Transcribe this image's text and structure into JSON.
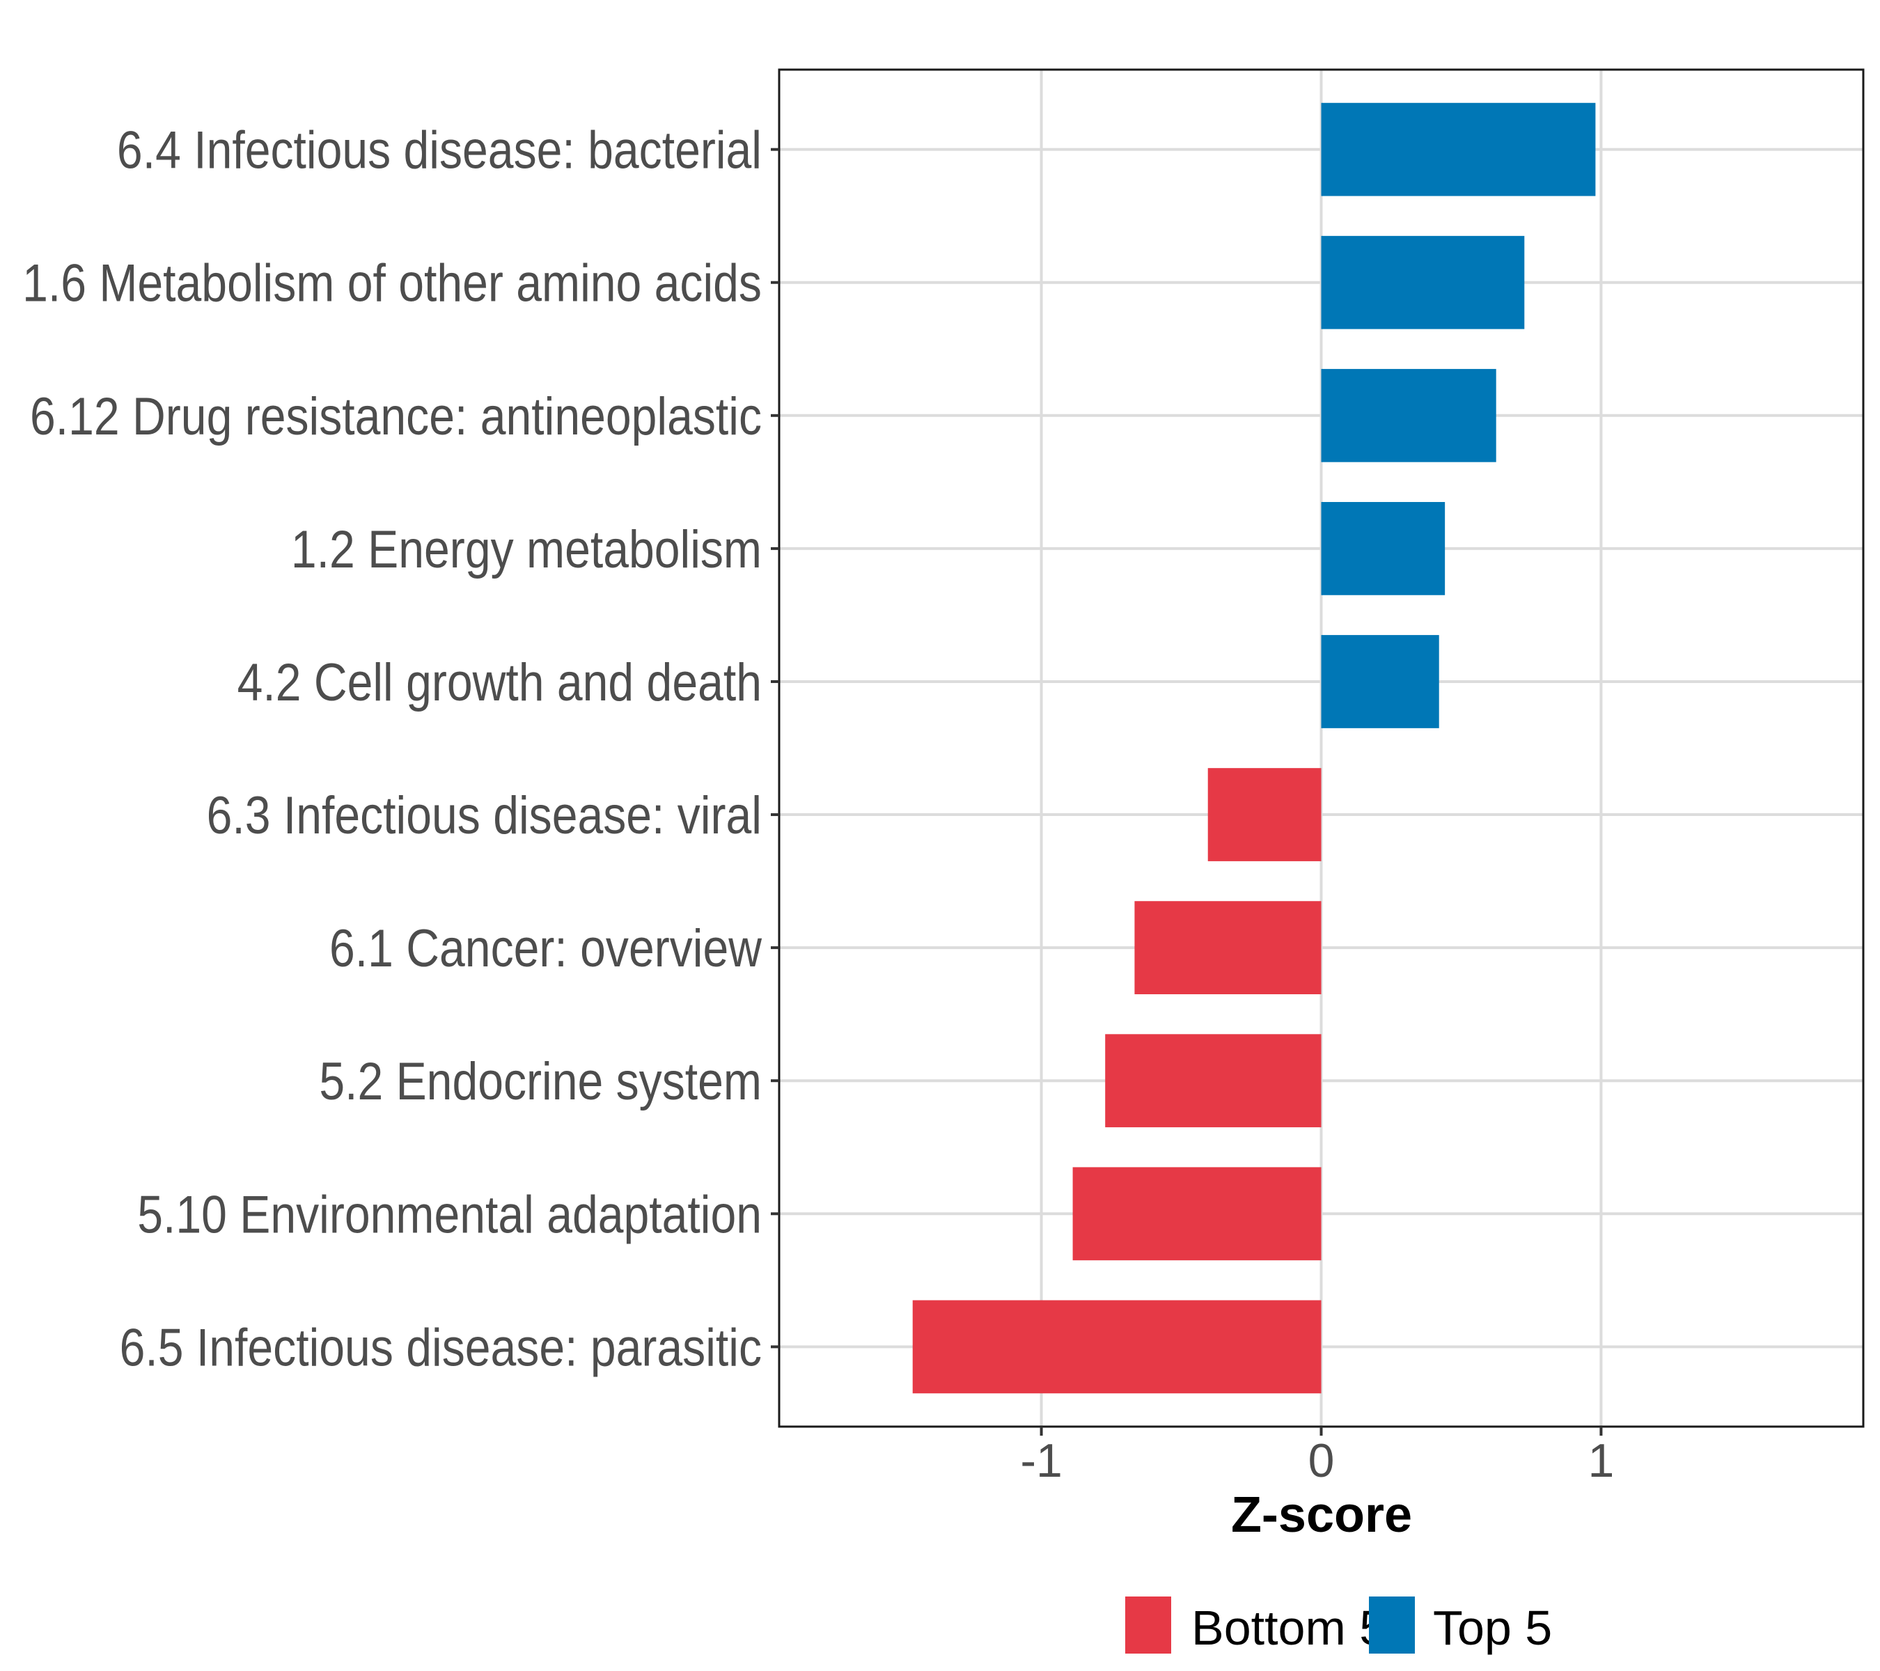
{
  "chart_data": {
    "type": "bar",
    "orientation": "horizontal",
    "title": "",
    "xlabel": "Z-score",
    "ylabel": "",
    "xlim": [
      -1.937,
      1.937
    ],
    "xticks": [
      -1,
      0,
      1
    ],
    "xtick_labels": [
      "-1",
      "0",
      "1"
    ],
    "grid": true,
    "legend_position": "bottom",
    "categories": [
      "6.4 Infectious disease: bacterial",
      "1.6 Metabolism of other amino acids",
      "6.12 Drug resistance: antineoplastic",
      "1.2 Energy metabolism",
      "4.2 Cell growth and death",
      "6.3 Infectious disease: viral",
      "6.1 Cancer: overview",
      "5.2 Endocrine system",
      "5.10 Environmental adaptation",
      "6.5 Infectious disease: parasitic"
    ],
    "values": [
      0.98,
      0.726,
      0.625,
      0.442,
      0.421,
      -0.405,
      -0.667,
      -0.772,
      -0.888,
      -1.46
    ],
    "groups": [
      "Top 5",
      "Top 5",
      "Top 5",
      "Top 5",
      "Top 5",
      "Bottom 5",
      "Bottom 5",
      "Bottom 5",
      "Bottom 5",
      "Bottom 5"
    ],
    "legend": [
      {
        "name": "Bottom 5",
        "color": "#E63946"
      },
      {
        "name": "Top 5",
        "color": "#0077B6"
      }
    ]
  }
}
